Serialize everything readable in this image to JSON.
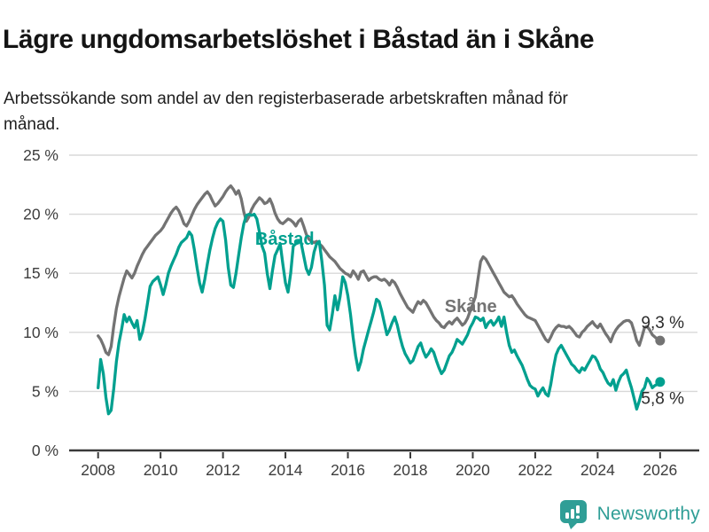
{
  "header": {
    "title": "Lägre ungdomsarbetslöshet i Båstad än i Skåne",
    "subtitle": "Arbetssökande som andel av den registerbaserade arbetskraften månad för månad."
  },
  "footer": {
    "brand": "Newsworthy",
    "logo_icon": "bar-chart-speech-bubble"
  },
  "colors": {
    "bastad": "#00a08f",
    "skane": "#737373",
    "grid": "#d8d8d8",
    "axis": "#3a3a3a",
    "tick_text": "#3d3d3d",
    "annotation_text": "#2b2b2b",
    "brand": "#2f9e96",
    "background": "#ffffff"
  },
  "chart_data": {
    "type": "line",
    "title": "Lägre ungdomsarbetslöshet i Båstad än i Skåne",
    "subtitle": "Arbetssökande som andel av den registerbaserade arbetskraften månad för månad.",
    "xlabel": "",
    "ylabel": "",
    "x_start_year": 2008,
    "x_interval": "monthly",
    "x_end": "2026-01",
    "xlim": [
      2007.85,
      2027.3
    ],
    "ylim": [
      0,
      26.5
    ],
    "grid": "horizontal",
    "legend": "inline-labels",
    "x_ticks": [
      2008,
      2010,
      2012,
      2014,
      2016,
      2018,
      2020,
      2022,
      2024,
      2026
    ],
    "x_tick_labels": [
      "2008",
      "2010",
      "2012",
      "2014",
      "2016",
      "2018",
      "2020",
      "2022",
      "2024",
      "2026"
    ],
    "y_ticks": [
      0,
      5,
      10,
      15,
      20,
      25
    ],
    "y_tick_labels": [
      "0 %",
      "5 %",
      "10 %",
      "15 %",
      "20 %",
      "25 %"
    ],
    "series": [
      {
        "name": "Skåne",
        "color": "#737373",
        "end_label": "9,3 %",
        "end_value": 9.3,
        "values": [
          9.7,
          9.4,
          8.9,
          8.3,
          8.1,
          8.8,
          10.5,
          12.0,
          13.0,
          13.8,
          14.6,
          15.2,
          14.9,
          14.6,
          15.0,
          15.6,
          16.1,
          16.6,
          17.0,
          17.3,
          17.6,
          17.9,
          18.2,
          18.4,
          18.6,
          18.9,
          19.3,
          19.7,
          20.1,
          20.4,
          20.6,
          20.3,
          19.8,
          19.2,
          19.0,
          19.4,
          19.9,
          20.4,
          20.8,
          21.1,
          21.4,
          21.7,
          21.9,
          21.6,
          21.1,
          20.7,
          20.9,
          21.2,
          21.5,
          21.9,
          22.2,
          22.4,
          22.1,
          21.7,
          22.0,
          21.3,
          20.2,
          19.4,
          19.8,
          20.4,
          20.8,
          21.1,
          21.4,
          21.2,
          20.9,
          21.0,
          21.3,
          20.8,
          20.1,
          19.6,
          19.3,
          19.2,
          19.4,
          19.6,
          19.5,
          19.3,
          19.0,
          19.4,
          19.6,
          19.0,
          18.3,
          17.9,
          17.7,
          17.6,
          17.7,
          17.5,
          17.3,
          17.0,
          16.7,
          16.4,
          16.2,
          16.0,
          15.7,
          15.4,
          15.2,
          15.0,
          14.9,
          14.7,
          15.2,
          14.9,
          14.5,
          15.1,
          15.2,
          14.8,
          14.4,
          14.6,
          14.7,
          14.7,
          14.5,
          14.4,
          14.5,
          14.3,
          14.0,
          14.4,
          14.2,
          13.8,
          13.3,
          12.9,
          12.5,
          12.1,
          11.9,
          11.7,
          12.2,
          12.6,
          12.4,
          12.7,
          12.5,
          12.1,
          11.7,
          11.3,
          11.0,
          10.8,
          10.5,
          10.4,
          10.7,
          10.9,
          10.7,
          11.0,
          11.2,
          10.9,
          10.6,
          10.8,
          11.2,
          11.8,
          12.4,
          13.0,
          14.5,
          16.0,
          16.4,
          16.2,
          15.8,
          15.4,
          15.0,
          14.6,
          14.2,
          13.8,
          13.4,
          13.2,
          13.0,
          13.1,
          12.8,
          12.4,
          12.1,
          11.8,
          11.5,
          11.3,
          11.2,
          11.1,
          11.0,
          10.6,
          10.2,
          9.8,
          9.4,
          9.2,
          9.6,
          10.1,
          10.4,
          10.6,
          10.5,
          10.5,
          10.4,
          10.5,
          10.3,
          10.0,
          9.7,
          9.6,
          10.0,
          10.2,
          10.5,
          10.7,
          10.9,
          10.6,
          10.4,
          10.7,
          10.3,
          9.9,
          9.6,
          9.2,
          9.8,
          10.2,
          10.5,
          10.7,
          10.9,
          11.0,
          11.0,
          10.8,
          10.1,
          9.3,
          8.9,
          9.6,
          10.4,
          10.5,
          10.2,
          9.8,
          9.6,
          9.4,
          9.3
        ]
      },
      {
        "name": "Båstad",
        "color": "#00a08f",
        "end_label": "5,8 %",
        "end_value": 5.8,
        "values": [
          5.3,
          7.7,
          6.5,
          4.5,
          3.1,
          3.4,
          5.2,
          7.5,
          9.1,
          10.2,
          11.5,
          10.9,
          11.3,
          10.8,
          10.4,
          11.0,
          9.4,
          10.0,
          11.1,
          12.5,
          13.9,
          14.3,
          14.5,
          14.7,
          14.0,
          13.2,
          14.0,
          15.0,
          15.6,
          16.1,
          16.6,
          17.2,
          17.6,
          17.8,
          18.0,
          18.5,
          18.2,
          17.0,
          15.5,
          14.2,
          13.4,
          14.5,
          15.8,
          17.0,
          18.0,
          18.8,
          19.3,
          19.6,
          19.4,
          17.8,
          15.5,
          14.0,
          13.8,
          15.0,
          16.5,
          18.0,
          19.2,
          19.9,
          20.0,
          19.9,
          20.0,
          19.6,
          18.5,
          17.3,
          16.7,
          15.0,
          13.7,
          15.2,
          16.5,
          17.0,
          17.5,
          15.8,
          14.2,
          13.4,
          15.0,
          17.3,
          17.5,
          17.7,
          17.6,
          16.5,
          15.4,
          14.9,
          15.5,
          16.8,
          17.5,
          17.7,
          16.0,
          14.0,
          10.6,
          10.2,
          11.5,
          13.1,
          11.9,
          13.0,
          14.7,
          14.2,
          13.1,
          11.5,
          9.6,
          8.0,
          6.8,
          7.5,
          8.6,
          9.4,
          10.2,
          11.0,
          11.8,
          12.8,
          12.6,
          11.8,
          10.8,
          9.8,
          10.2,
          10.8,
          11.3,
          10.6,
          9.6,
          8.8,
          8.2,
          7.8,
          7.4,
          7.6,
          8.2,
          8.8,
          9.1,
          8.4,
          7.9,
          8.2,
          8.6,
          8.3,
          7.6,
          7.0,
          6.5,
          6.8,
          7.4,
          8.0,
          8.3,
          8.8,
          9.4,
          9.2,
          9.0,
          9.4,
          9.8,
          10.4,
          10.8,
          11.3,
          11.2,
          11.0,
          11.2,
          10.4,
          10.8,
          11.0,
          10.6,
          10.9,
          11.3,
          10.5,
          11.3,
          10.0,
          8.9,
          8.3,
          8.5,
          8.0,
          7.6,
          7.2,
          6.6,
          6.0,
          5.5,
          5.3,
          5.2,
          4.6,
          5.0,
          5.3,
          4.8,
          4.6,
          5.6,
          7.0,
          8.1,
          8.6,
          8.9,
          8.5,
          8.1,
          7.7,
          7.3,
          7.1,
          6.8,
          6.6,
          7.0,
          6.8,
          7.2,
          7.6,
          8.0,
          7.9,
          7.5,
          6.9,
          6.6,
          6.1,
          5.7,
          5.5,
          6.0,
          5.1,
          5.8,
          6.3,
          6.5,
          6.8,
          6.0,
          5.3,
          4.4,
          3.5,
          4.2,
          5.0,
          5.3,
          6.1,
          5.8,
          5.3,
          5.5,
          5.6,
          5.8
        ]
      }
    ],
    "annotations": [
      {
        "text": "Båstad",
        "anchor_year": 2013.03,
        "anchor_value": 17.4,
        "color": "#00a08f"
      },
      {
        "text": "Skåne",
        "anchor_year": 2019.1,
        "anchor_value": 11.7,
        "color": "#737373"
      }
    ]
  }
}
